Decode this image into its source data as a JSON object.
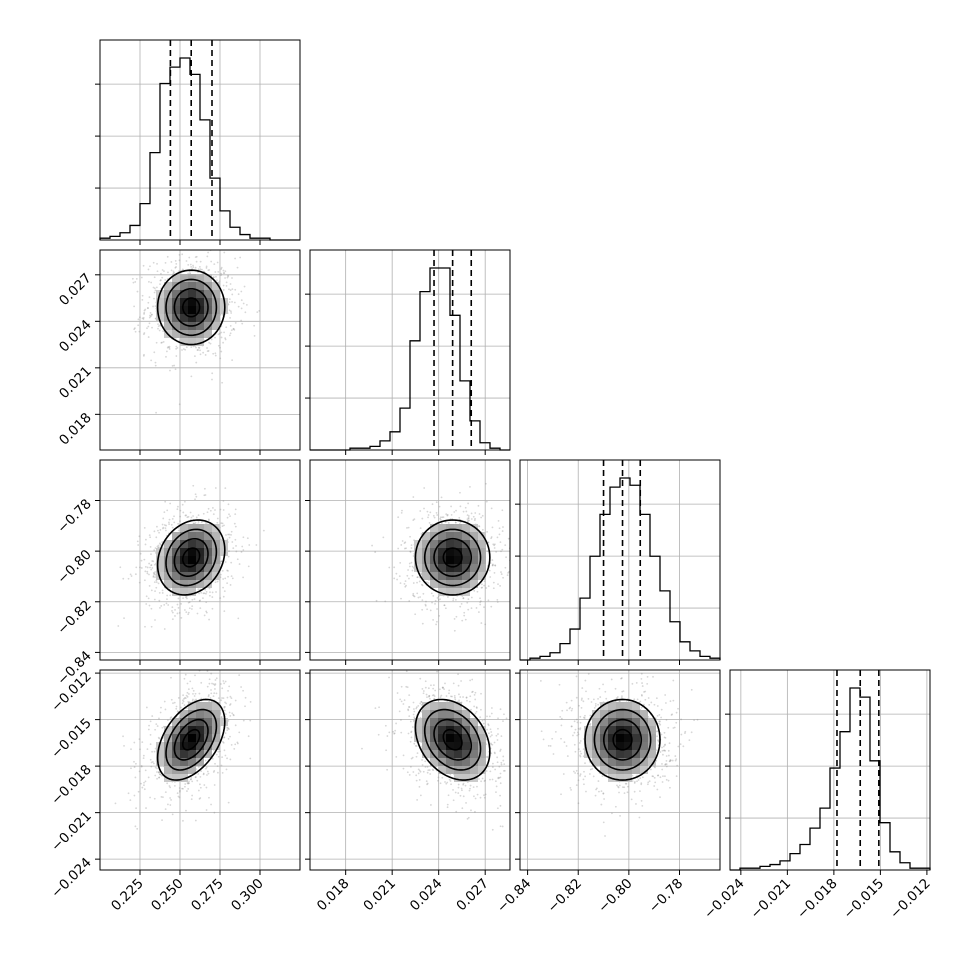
{
  "chart_data": {
    "type": "corner",
    "grid": true,
    "parameters": [
      {
        "ticks": [
          0.225,
          0.25,
          0.275,
          0.3
        ],
        "tick_labels": [
          "0.225",
          "0.250",
          "0.275",
          "0.300"
        ],
        "range": [
          0.2,
          0.325
        ],
        "mean": 0.257,
        "std": 0.0105,
        "quantiles": [
          0.244,
          0.257,
          0.27
        ],
        "hist_counts": [
          1,
          2,
          4,
          8,
          20,
          48,
          86,
          95,
          100,
          91,
          66,
          34,
          16,
          7,
          3,
          1,
          1,
          0,
          0,
          0
        ]
      },
      {
        "ticks": [
          0.018,
          0.021,
          0.024,
          0.027
        ],
        "tick_labels": [
          "0.018",
          "0.021",
          "0.024",
          "0.027"
        ],
        "range": [
          0.0157,
          0.0286
        ],
        "mean": 0.0249,
        "std": 0.0012,
        "quantiles": [
          0.0237,
          0.0249,
          0.0261
        ],
        "hist_counts": [
          0,
          0,
          0,
          0,
          1,
          1,
          2,
          5,
          10,
          23,
          60,
          87,
          100,
          100,
          74,
          38,
          16,
          4,
          1,
          0
        ]
      },
      {
        "ticks": [
          -0.84,
          -0.82,
          -0.8,
          -0.78
        ],
        "tick_labels": [
          "−0.84",
          "−0.82",
          "−0.80",
          "−0.78"
        ],
        "range": [
          -0.843,
          -0.764
        ],
        "mean": -0.8025,
        "std": 0.0074,
        "quantiles": [
          -0.81,
          -0.8025,
          -0.7955
        ],
        "hist_counts": [
          0,
          1,
          2,
          4,
          9,
          17,
          34,
          57,
          80,
          95,
          100,
          96,
          80,
          57,
          38,
          21,
          10,
          5,
          2,
          1
        ]
      },
      {
        "ticks": [
          -0.024,
          -0.021,
          -0.018,
          -0.015,
          -0.012
        ],
        "tick_labels": [
          "−0.024",
          "−0.021",
          "−0.018",
          "−0.015",
          "−0.012"
        ],
        "range": [
          -0.0247,
          -0.0118
        ],
        "mean": -0.0163,
        "std": 0.0013,
        "quantiles": [
          -0.0178,
          -0.0163,
          -0.0151
        ],
        "hist_counts": [
          0,
          1,
          1,
          2,
          3,
          5,
          9,
          14,
          23,
          34,
          56,
          76,
          100,
          95,
          60,
          26,
          10,
          4,
          1,
          1
        ]
      }
    ],
    "pairs": [
      {
        "x": 0,
        "y": 1,
        "rho": 0.0
      },
      {
        "x": 0,
        "y": 2,
        "rho": 0.2
      },
      {
        "x": 1,
        "y": 2,
        "rho": 0.0
      },
      {
        "x": 0,
        "y": 3,
        "rho": 0.45
      },
      {
        "x": 1,
        "y": 3,
        "rho": -0.3
      },
      {
        "x": 2,
        "y": 3,
        "rho": 0.0
      }
    ],
    "contour_levels_sigma": [
      0.5,
      1.0,
      1.5,
      2.0
    ],
    "scatter_points_per_panel": 900
  }
}
